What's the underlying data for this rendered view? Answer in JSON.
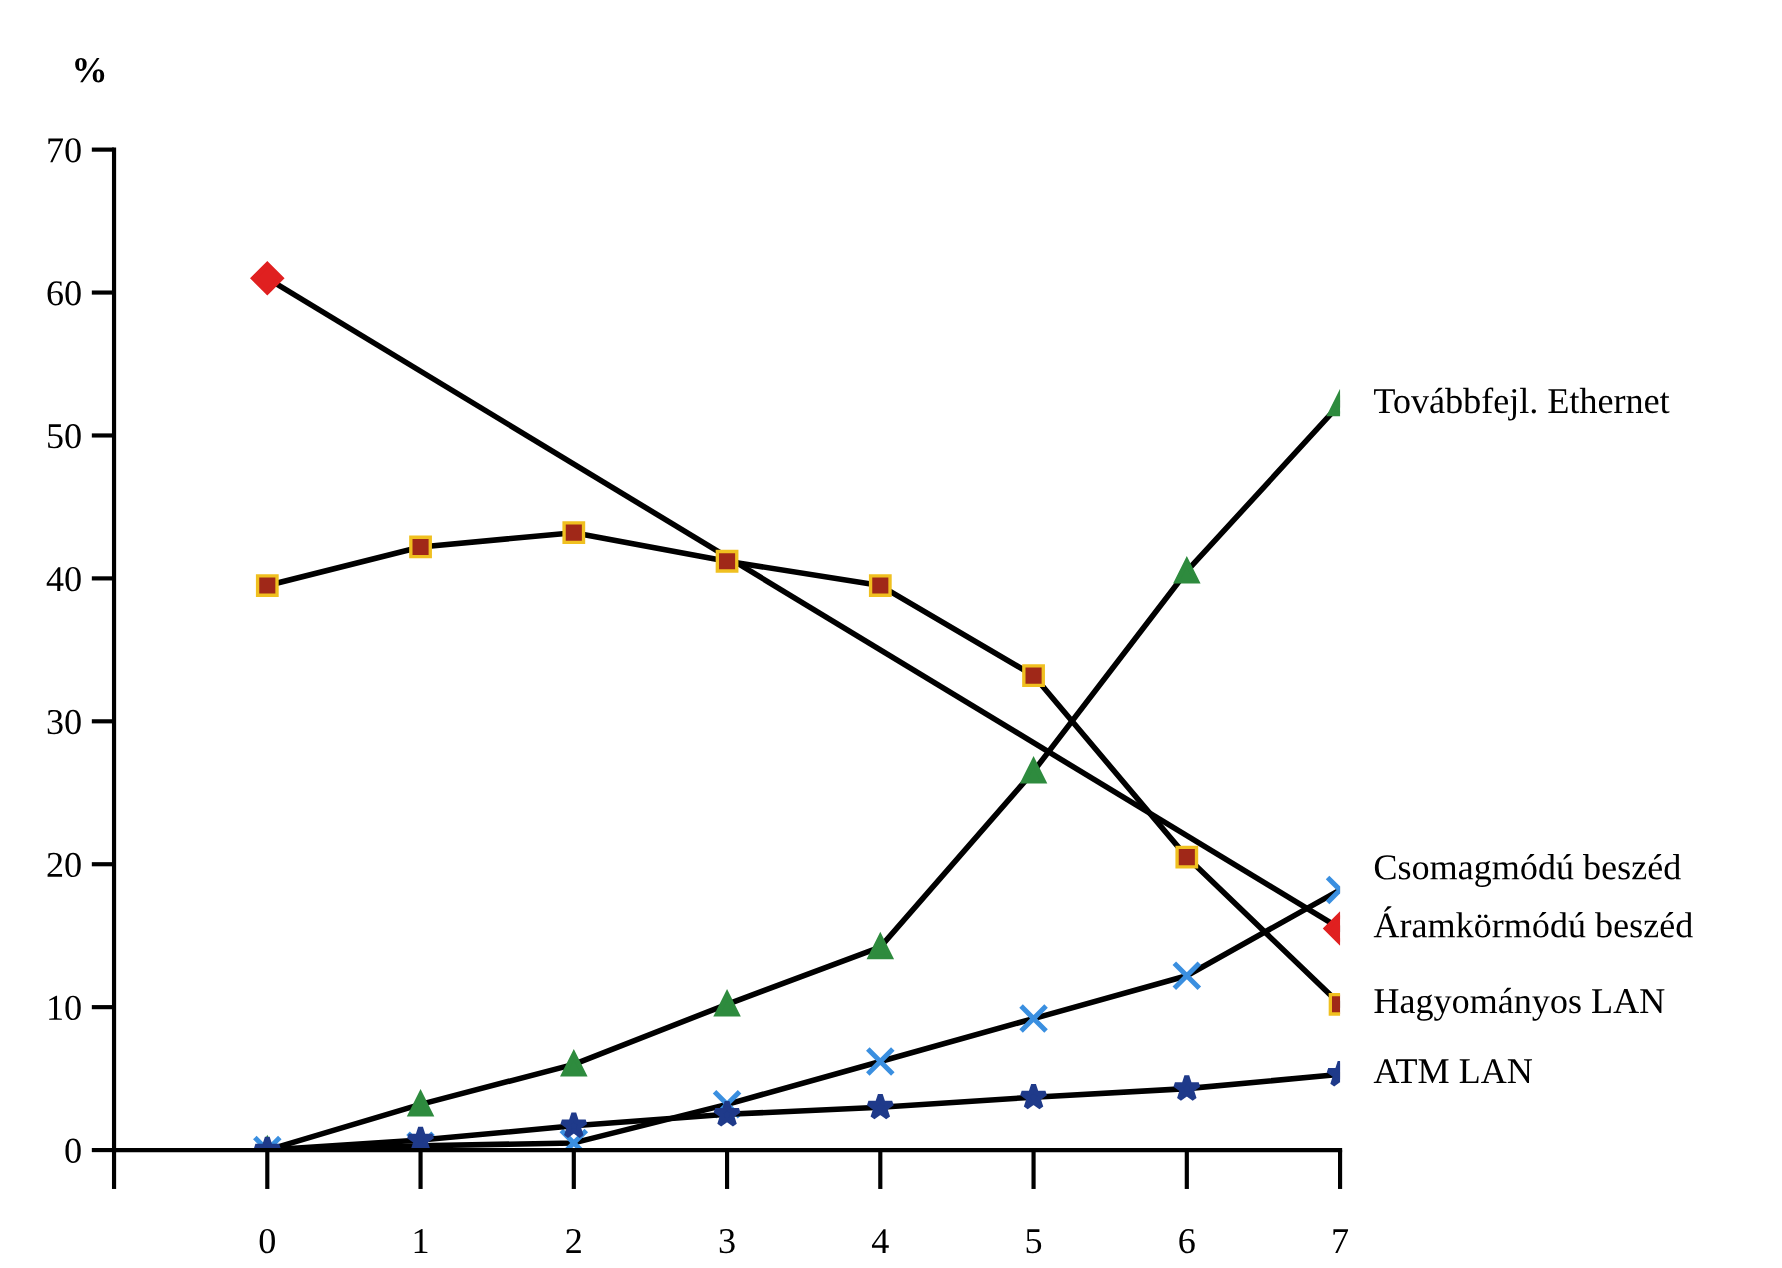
{
  "chart_data": {
    "type": "line",
    "ylabel": "%",
    "xlim": [
      -1,
      7
    ],
    "xticks": [
      {
        "value": -1,
        "label": null
      },
      0,
      1,
      2,
      3,
      4,
      5,
      6,
      7
    ],
    "ylim": [
      0,
      70
    ],
    "yticks": [
      0,
      10,
      20,
      30,
      40,
      50,
      60,
      70
    ],
    "grid": false,
    "legend": false,
    "series": [
      {
        "name": "Továbbfejl. Ethernet",
        "color": "#2e8b3e",
        "marker": "triangle",
        "x": [
          0,
          1,
          2,
          3,
          4,
          5,
          6,
          7
        ],
        "values": [
          0,
          3.2,
          6,
          10.2,
          14.2,
          26.5,
          40.5,
          52.2
        ]
      },
      {
        "name": "Csomagmódú beszéd",
        "color": "#3a8fe0",
        "marker": "cross",
        "x": [
          0,
          1,
          2,
          3,
          4,
          5,
          6,
          7
        ],
        "values": [
          0,
          0.3,
          0.5,
          3.2,
          6.2,
          9.2,
          12.2,
          18.2
        ]
      },
      {
        "name": "Áramkörmódú beszéd",
        "color": "#e02020",
        "marker": "diamond",
        "x": [
          0,
          7
        ],
        "values": [
          61,
          15.5
        ]
      },
      {
        "name": "Hagyományos LAN",
        "color": "#a02818",
        "marker": "square",
        "x": [
          0,
          1,
          2,
          3,
          4,
          5,
          6,
          7
        ],
        "values": [
          39.5,
          42.2,
          43.2,
          41.2,
          39.5,
          33.2,
          20.5,
          10.2
        ]
      },
      {
        "name": "ATM LAN",
        "color": "#1f3a8a",
        "marker": "star",
        "x": [
          0,
          1,
          2,
          3,
          4,
          5,
          6,
          7
        ],
        "values": [
          0,
          0.7,
          1.7,
          2.5,
          3.0,
          3.7,
          4.3,
          5.3
        ]
      }
    ]
  }
}
